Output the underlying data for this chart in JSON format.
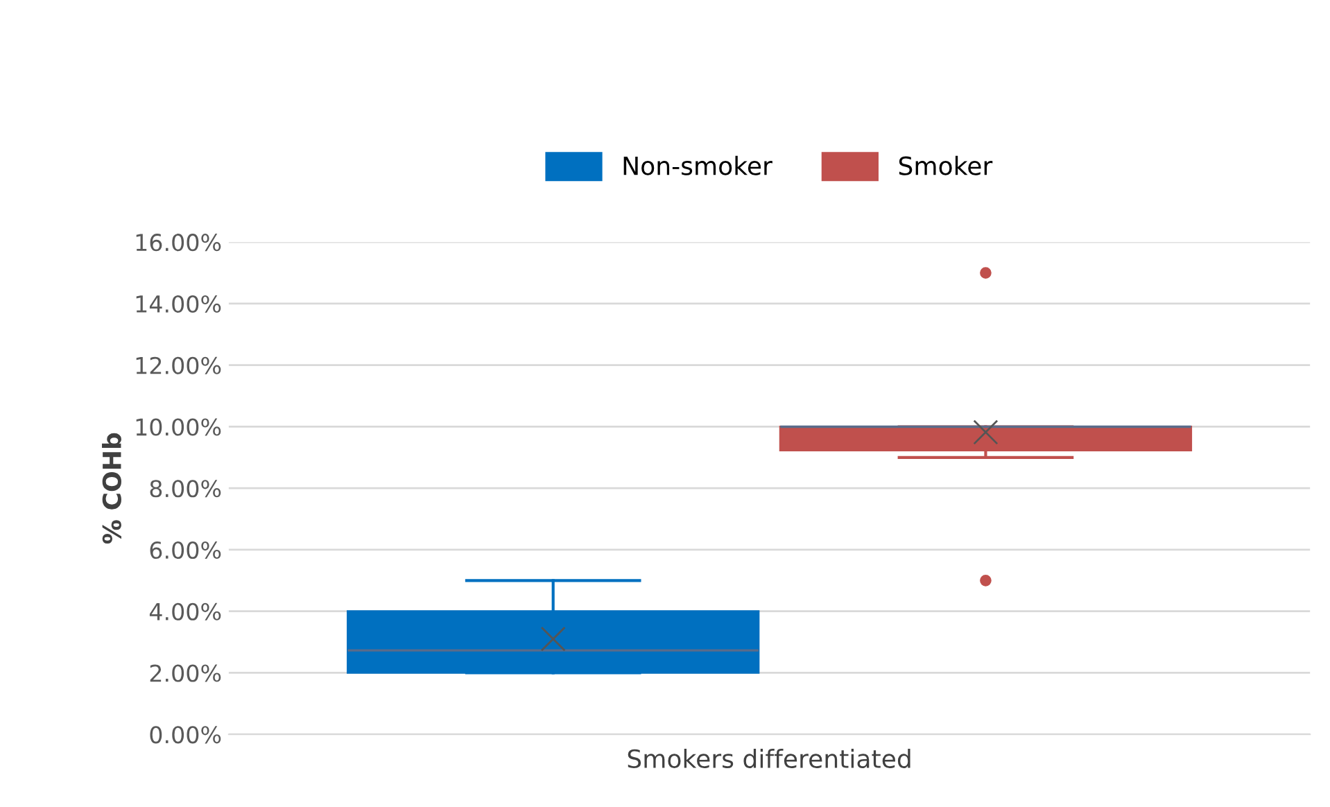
{
  "chart_data": {
    "type": "box",
    "xlabel": "Smokers differentiated",
    "ylabel": "% COHb",
    "categories": [
      null
    ],
    "series": [
      {
        "name": "Non-smoker",
        "color": "#0070c0",
        "boxes": [
          {
            "low": 2,
            "q1": 2,
            "median": 2.73,
            "q3": 4,
            "high": 5,
            "mean": 3.1
          }
        ]
      },
      {
        "name": "Smoker",
        "color": "#c0504d",
        "boxes": [
          {
            "low": 9,
            "q1": 9.23,
            "median": 10,
            "q3": 10,
            "high": 10,
            "mean": 9.82,
            "outliers": [
              15,
              5
            ]
          }
        ]
      }
    ],
    "ylim": [
      0,
      16
    ],
    "yticks": [
      {
        "value": 0,
        "label": "0.00%"
      },
      {
        "value": 2,
        "label": "2.00%"
      },
      {
        "value": 4,
        "label": "4.00%"
      },
      {
        "value": 6,
        "label": "6.00%"
      },
      {
        "value": 8,
        "label": "8.00%"
      },
      {
        "value": 10,
        "label": "10.00%"
      },
      {
        "value": 12,
        "label": "12.00%"
      },
      {
        "value": 14,
        "label": "14.00%"
      },
      {
        "value": 16,
        "label": "16.00%"
      }
    ],
    "grid": "y",
    "legend": "top"
  }
}
